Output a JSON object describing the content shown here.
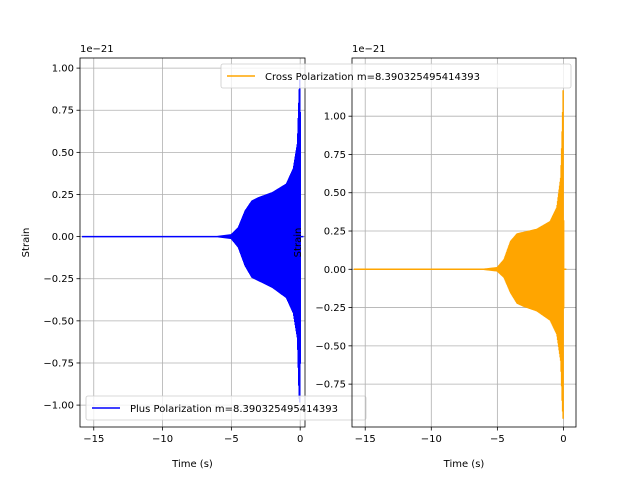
{
  "chart_data": [
    {
      "type": "line",
      "panel": "left",
      "xlabel": "Time (s)",
      "ylabel": "Strain",
      "y_offset_label": "1e−21",
      "xlim": [
        -16.0,
        0.35
      ],
      "ylim": [
        -1.13,
        1.06
      ],
      "xticks": [
        -15,
        -10,
        -5,
        0
      ],
      "xtick_labels": [
        "−15",
        "−10",
        "−5",
        "0"
      ],
      "yticks": [
        -1.0,
        -0.75,
        -0.5,
        -0.25,
        0.0,
        0.25,
        0.5,
        0.75,
        1.0
      ],
      "ytick_labels": [
        "−1.00",
        "−0.75",
        "−0.50",
        "−0.25",
        "0.00",
        "0.25",
        "0.50",
        "0.75",
        "1.00"
      ],
      "grid": true,
      "legend_placement": "lower left",
      "series": [
        {
          "name": "Plus Polarization m=8.390325495414393",
          "color": "#0000ff",
          "t_start": -15.8,
          "t_end": 0.2,
          "envelope": {
            "x": [
              -15.8,
              -6.0,
              -5.0,
              -4.5,
              -4.0,
              -3.5,
              -3.0,
              -2.0,
              -1.0,
              -0.5,
              -0.2,
              -0.08,
              0.0,
              0.02,
              0.2
            ],
            "y": [
              0.0,
              0.0,
              0.01,
              0.05,
              0.15,
              0.21,
              0.23,
              0.26,
              0.31,
              0.4,
              0.55,
              0.85,
              0.98,
              0.0,
              0.0
            ]
          },
          "min_envelope": {
            "x": [
              -15.8,
              -6.0,
              -5.0,
              -4.5,
              -4.0,
              -3.5,
              -3.0,
              -2.0,
              -1.0,
              -0.5,
              -0.2,
              -0.08,
              0.0,
              0.02,
              0.2
            ],
            "y": [
              0.0,
              0.0,
              -0.01,
              -0.06,
              -0.17,
              -0.24,
              -0.26,
              -0.3,
              -0.36,
              -0.45,
              -0.6,
              -0.95,
              -1.0,
              0.0,
              0.0
            ]
          }
        }
      ]
    },
    {
      "type": "line",
      "panel": "right",
      "xlabel": "Time (s)",
      "ylabel": "Strain",
      "y_offset_label": "1e−21",
      "xlim": [
        -16.0,
        0.95
      ],
      "ylim": [
        -1.03,
        1.38
      ],
      "xticks": [
        -15,
        -10,
        -5,
        0
      ],
      "xtick_labels": [
        "−15",
        "−10",
        "−5",
        "0"
      ],
      "yticks": [
        -0.75,
        -0.5,
        -0.25,
        0.0,
        0.25,
        0.5,
        0.75,
        1.0
      ],
      "ytick_labels": [
        "−0.75",
        "−0.50",
        "−0.25",
        "0.00",
        "0.25",
        "0.50",
        "0.75",
        "1.00"
      ],
      "grid": true,
      "legend_placement": "upper right",
      "series": [
        {
          "name": "Cross Polarization m=8.390325495414393",
          "color": "#ffa500",
          "t_start": -15.8,
          "t_end": 0.2,
          "envelope": {
            "x": [
              -15.8,
              -6.0,
              -5.0,
              -4.5,
              -4.0,
              -3.5,
              -3.0,
              -2.0,
              -1.0,
              -0.5,
              -0.2,
              -0.08,
              0.0,
              0.02,
              0.2
            ],
            "y": [
              0.0,
              0.0,
              0.01,
              0.06,
              0.18,
              0.23,
              0.24,
              0.26,
              0.31,
              0.4,
              0.6,
              0.95,
              1.25,
              0.0,
              0.0
            ]
          },
          "min_envelope": {
            "x": [
              -15.8,
              -6.0,
              -5.0,
              -4.5,
              -4.0,
              -3.5,
              -3.0,
              -2.0,
              -1.0,
              -0.5,
              -0.2,
              -0.08,
              0.0,
              0.02,
              0.2
            ],
            "y": [
              0.0,
              0.0,
              -0.01,
              -0.05,
              -0.15,
              -0.22,
              -0.24,
              -0.27,
              -0.33,
              -0.42,
              -0.6,
              -0.9,
              -1.0,
              0.0,
              0.0
            ]
          }
        }
      ]
    }
  ]
}
